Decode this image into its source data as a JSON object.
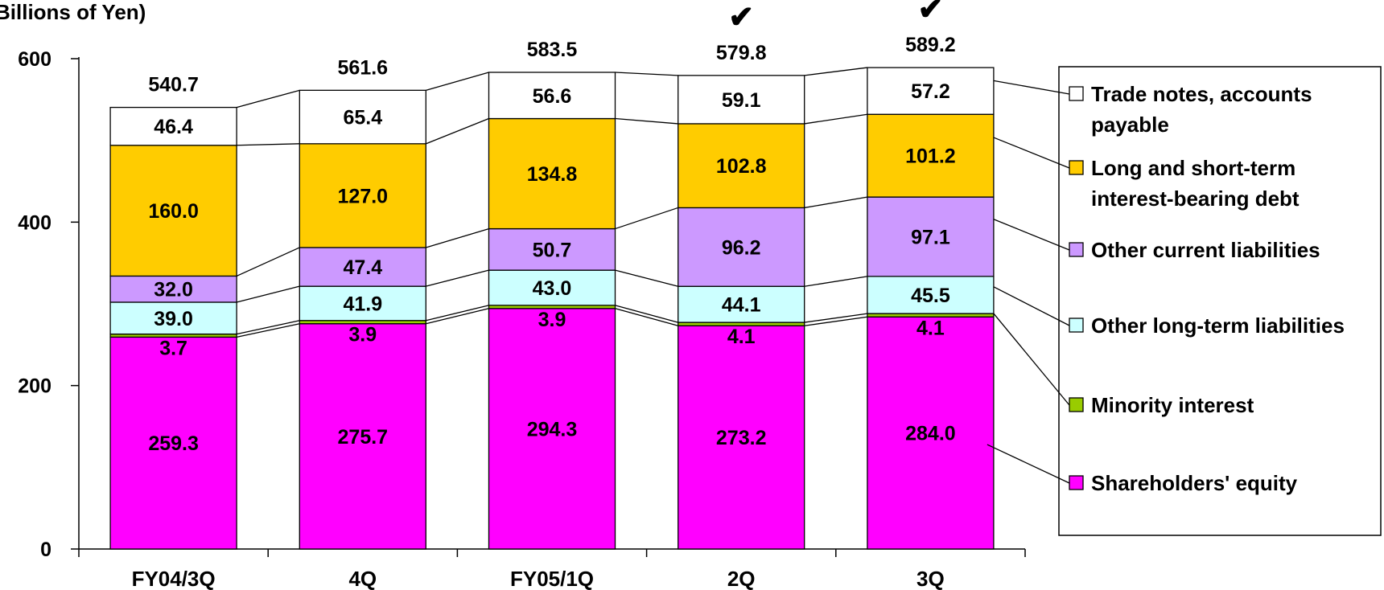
{
  "chart_data": {
    "type": "bar",
    "stacked": true,
    "units_label": "Billions of Yen)",
    "categories": [
      "FY04/3Q",
      "4Q",
      "FY05/1Q",
      "2Q",
      "3Q"
    ],
    "yticks": [
      0,
      200,
      400,
      600
    ],
    "ylim": [
      0,
      600
    ],
    "totals": [
      "540.7",
      "561.6",
      "583.5",
      "579.8",
      "589.2"
    ],
    "check_marks": [
      false,
      false,
      false,
      true,
      true
    ],
    "check_symbol": "✔",
    "series": [
      {
        "name": "Shareholders' equity",
        "color": "#FF00FF",
        "values": [
          259.3,
          275.7,
          294.3,
          273.2,
          284.0
        ],
        "labels": [
          "259.3",
          "275.7",
          "294.3",
          "273.2",
          "284.0"
        ]
      },
      {
        "name": "Minority interest",
        "color": "#99CC00",
        "values": [
          3.7,
          3.9,
          3.9,
          4.1,
          4.1
        ],
        "labels": [
          "3.7",
          "3.9",
          "3.9",
          "4.1",
          "4.1"
        ]
      },
      {
        "name": "Other long-term liabilities",
        "color": "#CCFFFF",
        "values": [
          39.0,
          41.9,
          43.0,
          44.1,
          45.5
        ],
        "labels": [
          "39.0",
          "41.9",
          "43.0",
          "44.1",
          "45.5"
        ]
      },
      {
        "name": "Other current liabilities",
        "color": "#CC99FF",
        "values": [
          32.0,
          47.4,
          50.7,
          96.2,
          97.1
        ],
        "labels": [
          "32.0",
          "47.4",
          "50.7",
          "96.2",
          "97.1"
        ]
      },
      {
        "name": "Long and short-term interest-bearing debt",
        "color": "#FFCC00",
        "values": [
          160.0,
          127.0,
          134.8,
          102.8,
          101.2
        ],
        "labels": [
          "160.0",
          "127.0",
          "134.8",
          "102.8",
          "101.2"
        ]
      },
      {
        "name": "Trade notes, accounts payable",
        "color": "#FFFFFF",
        "values": [
          46.4,
          65.4,
          56.6,
          59.1,
          57.2
        ],
        "labels": [
          "46.4",
          "65.4",
          "56.6",
          "59.1",
          "57.2"
        ]
      }
    ],
    "legend": {
      "position": "right",
      "items": [
        {
          "lines": [
            "Trade notes, accounts",
            "payable"
          ],
          "color": "#FFFFFF"
        },
        {
          "lines": [
            "Long and short-term",
            "interest-bearing debt"
          ],
          "color": "#FFCC00"
        },
        {
          "lines": [
            "Other current liabilities"
          ],
          "color": "#CC99FF"
        },
        {
          "lines": [
            "Other long-term liabilities"
          ],
          "color": "#CCFFFF"
        },
        {
          "lines": [
            "Minority interest"
          ],
          "color": "#99CC00"
        },
        {
          "lines": [
            "Shareholders' equity"
          ],
          "color": "#FF00FF"
        }
      ]
    }
  }
}
